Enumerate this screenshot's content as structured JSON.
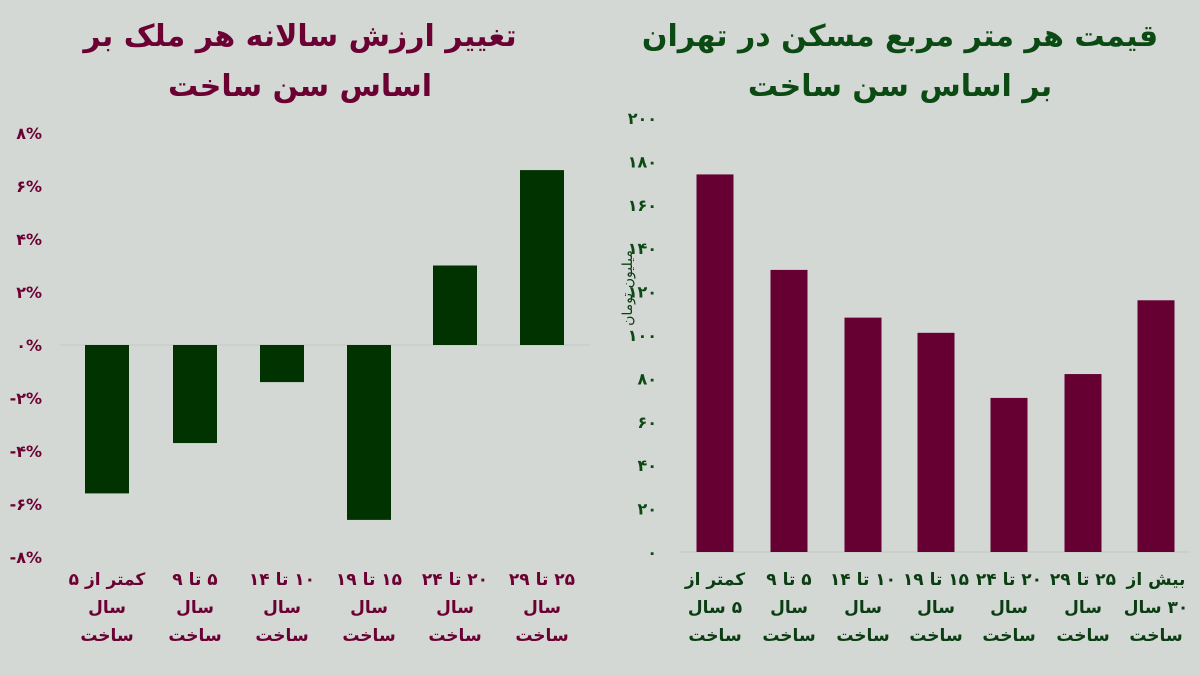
{
  "chart_data": [
    {
      "type": "bar",
      "title": "تغییر ارزش سالانه هر ملک بر اساس سن ساخت",
      "categories": [
        "کمتر از ۵ سال ساخت",
        "۵ تا ۹ سال ساخت",
        "۱۰ تا ۱۴ سال ساخت",
        "۱۵ تا ۱۹ سال ساخت",
        "۲۰ تا ۲۴ سال ساخت",
        "۲۵ تا ۲۹ سال ساخت"
      ],
      "values": [
        -5.6,
        -3.7,
        -1.4,
        -6.6,
        3.0,
        6.6
      ],
      "unit": "%",
      "ylim": [
        -8,
        8
      ],
      "yticks": [
        8,
        6,
        4,
        2,
        0,
        -2,
        -4,
        -6,
        -8
      ],
      "ytick_labels": [
        "۸%",
        "۶%",
        "۴%",
        "۲%",
        "۰%",
        "-۲%",
        "-۴%",
        "-۶%",
        "-۸%"
      ],
      "bar_color": "#003300",
      "text_color": "#6b0033",
      "grid": false
    },
    {
      "type": "bar",
      "title": "قیمت هر متر مربع مسکن در تهران بر اساس سن ساخت",
      "ylabel": "میلیون تومان",
      "categories": [
        "کمتر از ۵ سال ساخت",
        "۵ تا ۹ سال ساخت",
        "۱۰ تا ۱۴ سال ساخت",
        "۱۵ تا ۱۹ سال ساخت",
        "۲۰ تا ۲۴ سال ساخت",
        "۲۵ تا ۲۹ سال ساخت",
        "بیش از ۳۰ سال ساخت"
      ],
      "values": [
        174,
        130,
        108,
        101,
        71,
        82,
        116
      ],
      "ylim": [
        0,
        200
      ],
      "yticks": [
        200,
        180,
        160,
        140,
        120,
        100,
        80,
        60,
        40,
        20,
        0
      ],
      "ytick_labels": [
        "۲۰۰",
        "۱۸۰",
        "۱۶۰",
        "۱۴۰",
        "۱۲۰",
        "۱۰۰",
        "۸۰",
        "۶۰",
        "۴۰",
        "۲۰",
        "۰"
      ],
      "bar_color": "#660033",
      "text_color": "#0b4a12",
      "grid": false
    }
  ]
}
